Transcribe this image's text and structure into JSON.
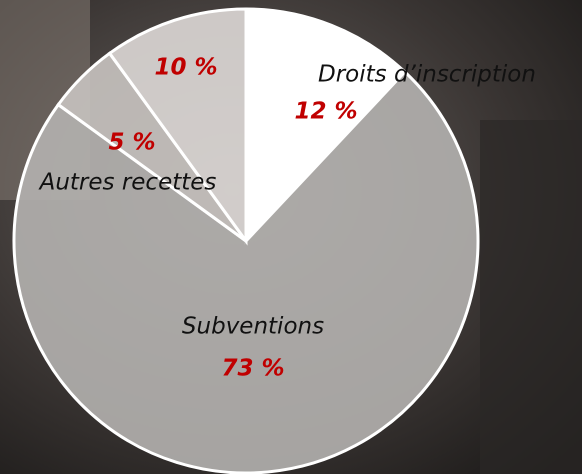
{
  "chart_data": {
    "type": "pie",
    "categories": [
      "Droits d’inscription",
      "Subventions",
      "Autres recettes",
      null
    ],
    "values": [
      12,
      73,
      5,
      10
    ],
    "value_labels": [
      "12 %",
      "73 %",
      "5 %",
      "10 %"
    ],
    "colors": [
      "#ffffff",
      "#b4b1af",
      "#c8c3c0",
      "#ddd8d6"
    ]
  }
}
